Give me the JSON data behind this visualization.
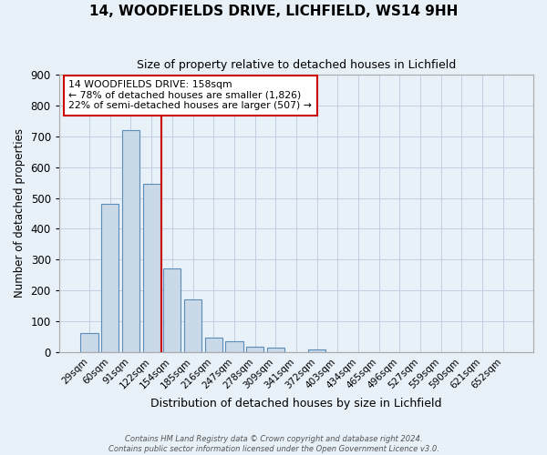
{
  "title": "14, WOODFIELDS DRIVE, LICHFIELD, WS14 9HH",
  "subtitle": "Size of property relative to detached houses in Lichfield",
  "xlabel": "Distribution of detached houses by size in Lichfield",
  "ylabel": "Number of detached properties",
  "bar_labels": [
    "29sqm",
    "60sqm",
    "91sqm",
    "122sqm",
    "154sqm",
    "185sqm",
    "216sqm",
    "247sqm",
    "278sqm",
    "309sqm",
    "341sqm",
    "372sqm",
    "403sqm",
    "434sqm",
    "465sqm",
    "496sqm",
    "527sqm",
    "559sqm",
    "590sqm",
    "621sqm",
    "652sqm"
  ],
  "bar_values": [
    62,
    482,
    720,
    545,
    272,
    172,
    48,
    35,
    18,
    14,
    0,
    9,
    0,
    0,
    0,
    0,
    0,
    0,
    0,
    0,
    0
  ],
  "bar_color": "#c9d9e8",
  "bar_edge_color": "#5b8db8",
  "grid_color": "#c0cfe0",
  "background_color": "#e8f0f8",
  "vline_x": 3.5,
  "vline_color": "#cc0000",
  "ylim": [
    0,
    900
  ],
  "yticks": [
    0,
    100,
    200,
    300,
    400,
    500,
    600,
    700,
    800,
    900
  ],
  "annotation_title": "14 WOODFIELDS DRIVE: 158sqm",
  "annotation_line1": "← 78% of detached houses are smaller (1,826)",
  "annotation_line2": "22% of semi-detached houses are larger (507) →",
  "annotation_box_facecolor": "#ffffff",
  "annotation_box_edgecolor": "#cc0000",
  "footer_line1": "Contains HM Land Registry data © Crown copyright and database right 2024.",
  "footer_line2": "Contains public sector information licensed under the Open Government Licence v3.0."
}
